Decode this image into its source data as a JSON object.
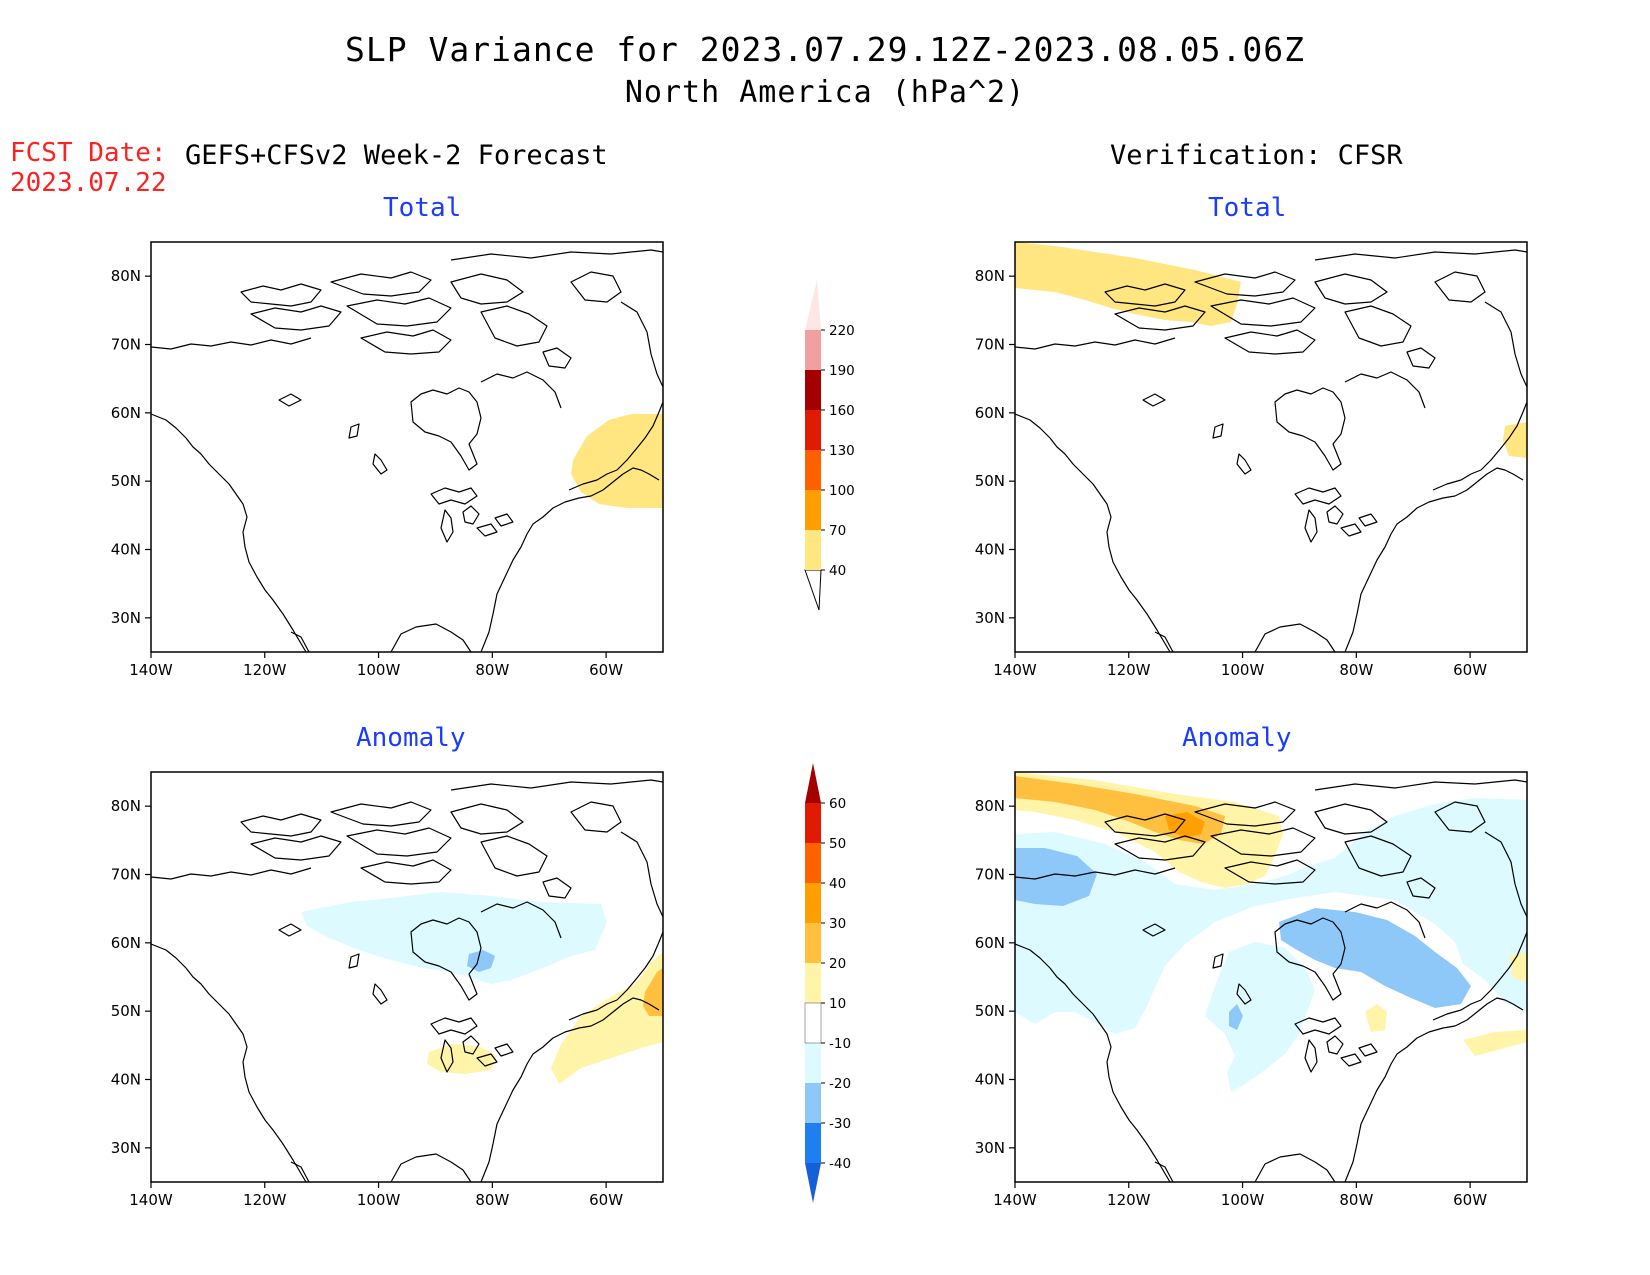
{
  "title": {
    "line1": "SLP Variance for 2023.07.29.12Z-2023.08.05.06Z",
    "line2": "North America (hPa^2)"
  },
  "forecast": {
    "date_label": "FCST Date:",
    "date_value": "2023.07.22",
    "heading": "GEFS+CFSv2 Week-2 Forecast"
  },
  "verification": {
    "heading": "Verification: CFSR"
  },
  "panels": {
    "forecast_total": {
      "title": "Total"
    },
    "forecast_anomaly": {
      "title": "Anomaly"
    },
    "verification_total": {
      "title": "Total"
    },
    "verification_anomaly": {
      "title": "Anomaly"
    }
  },
  "axes": {
    "lat_labels": [
      "80N",
      "70N",
      "60N",
      "50N",
      "40N",
      "30N"
    ],
    "lon_labels": [
      "140W",
      "120W",
      "100W",
      "80W",
      "60W"
    ],
    "lat_range": [
      25,
      85
    ],
    "lon_range": [
      -140,
      -50
    ]
  },
  "colorbar_total": {
    "levels": [
      "40",
      "70",
      "100",
      "130",
      "160",
      "190",
      "220"
    ],
    "colors": [
      "#ffe680",
      "#ffa000",
      "#ff6000",
      "#e01a00",
      "#a50000",
      "#f0a0a0",
      "#fde6e6"
    ]
  },
  "colorbar_anomaly": {
    "levels": [
      "-40",
      "-30",
      "-20",
      "-10",
      "10",
      "20",
      "30",
      "40",
      "50",
      "60"
    ],
    "colors": [
      "#1560d8",
      "#1e80f0",
      "#8ec8f8",
      "#dcfaff",
      "#ffffff",
      "#fff4a8",
      "#ffc040",
      "#ffa000",
      "#ff6000",
      "#e01a00",
      "#a50000"
    ]
  },
  "shading_colors": {
    "total_40_70": "#ffe680",
    "anom_pos_10_20": "#fff4a8",
    "anom_pos_20_30": "#ffc040",
    "anom_pos_30_40": "#ffa000",
    "anom_neg_10_20": "#dcfaff",
    "anom_neg_20_30": "#8ec8f8"
  }
}
